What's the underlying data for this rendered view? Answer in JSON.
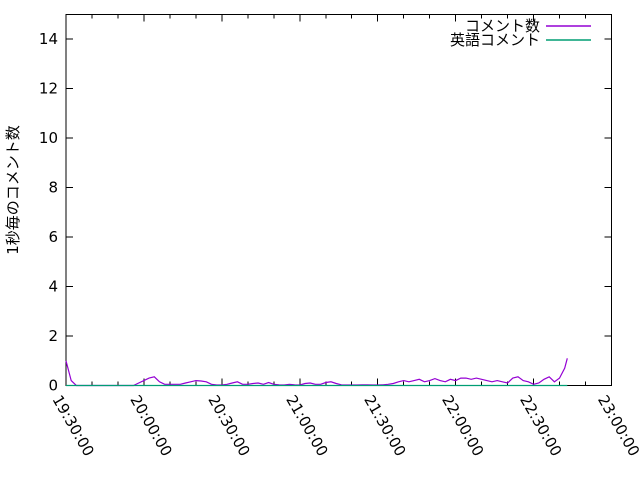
{
  "page": {
    "background": "#ffffff",
    "border_color": "#000000",
    "text_color": "#000000"
  },
  "chart_data": {
    "type": "line",
    "title": "",
    "xlabel": "",
    "ylabel": "1秒毎のコメント数",
    "ylim": [
      0,
      15
    ],
    "y_ticks": [
      "0",
      "2",
      "4",
      "6",
      "8",
      "10",
      "12",
      "14"
    ],
    "y_tick_values": [
      0,
      2,
      4,
      6,
      8,
      10,
      12,
      14
    ],
    "x_axis_type": "time",
    "x_range_minutes": [
      0,
      210
    ],
    "x_tick_labels": [
      "19:30:00",
      "20:00:00",
      "20:30:00",
      "21:00:00",
      "21:30:00",
      "22:00:00",
      "22:30:00",
      "23:00:00"
    ],
    "x_major_tick_minutes": 30,
    "x_minor_tick_minutes": 10,
    "grid": false,
    "legend_position": "top-right-inside",
    "x_minutes": [
      0,
      2,
      4,
      6,
      8,
      10,
      12,
      14,
      16,
      18,
      20,
      22,
      24,
      26,
      28,
      30,
      32,
      34,
      36,
      38,
      40,
      42,
      44,
      46,
      48,
      50,
      52,
      54,
      56,
      58,
      60,
      62,
      64,
      66,
      68,
      70,
      72,
      74,
      76,
      78,
      80,
      82,
      84,
      86,
      88,
      90,
      92,
      94,
      96,
      98,
      100,
      102,
      104,
      106,
      108,
      110,
      112,
      114,
      116,
      118,
      120,
      122,
      124,
      126,
      128,
      130,
      132,
      134,
      136,
      138,
      140,
      142,
      144,
      146,
      148,
      150,
      152,
      154,
      156,
      158,
      160,
      162,
      164,
      166,
      168,
      170,
      172,
      174,
      176,
      178,
      180,
      182,
      184,
      186,
      188,
      190,
      192,
      193
    ],
    "series": [
      {
        "name": "コメント数",
        "color": "#9400d3",
        "values": [
          1.0,
          0.2,
          0,
          0,
          0,
          0,
          0,
          0,
          0,
          0,
          0,
          0,
          0,
          0,
          0.1,
          0.2,
          0.3,
          0.35,
          0.15,
          0.05,
          0.05,
          0.05,
          0.05,
          0.1,
          0.15,
          0.2,
          0.18,
          0.15,
          0.05,
          0.02,
          0.02,
          0.05,
          0.1,
          0.15,
          0.05,
          0.05,
          0.08,
          0.1,
          0.05,
          0.12,
          0.05,
          0.03,
          0.02,
          0.05,
          0.03,
          0.02,
          0.08,
          0.1,
          0.05,
          0.05,
          0.12,
          0.15,
          0.08,
          0.03,
          0.02,
          0.02,
          0.02,
          0.03,
          0.03,
          0.02,
          0.02,
          0.03,
          0.05,
          0.08,
          0.15,
          0.2,
          0.15,
          0.2,
          0.25,
          0.15,
          0.2,
          0.28,
          0.2,
          0.15,
          0.25,
          0.2,
          0.3,
          0.3,
          0.25,
          0.3,
          0.25,
          0.2,
          0.15,
          0.2,
          0.15,
          0.1,
          0.3,
          0.35,
          0.2,
          0.15,
          0.05,
          0.1,
          0.25,
          0.35,
          0.15,
          0.3,
          0.7,
          1.1
        ]
      },
      {
        "name": "英語コメント",
        "color": "#009e73",
        "values": [
          0,
          0,
          0,
          0,
          0,
          0,
          0,
          0,
          0,
          0,
          0,
          0,
          0,
          0,
          0,
          0,
          0,
          0,
          0,
          0,
          0,
          0,
          0,
          0,
          0,
          0,
          0,
          0,
          0,
          0,
          0,
          0,
          0,
          0,
          0,
          0,
          0,
          0,
          0,
          0,
          0,
          0,
          0,
          0,
          0,
          0,
          0,
          0,
          0,
          0,
          0,
          0,
          0,
          0,
          0,
          0,
          0,
          0,
          0,
          0,
          0,
          0,
          0,
          0,
          0,
          0,
          0,
          0,
          0,
          0,
          0,
          0,
          0,
          0,
          0,
          0,
          0,
          0,
          0,
          0,
          0,
          0,
          0,
          0,
          0,
          0,
          0,
          0,
          0,
          0,
          0,
          0,
          0,
          0,
          0,
          0,
          0,
          0
        ]
      }
    ]
  }
}
